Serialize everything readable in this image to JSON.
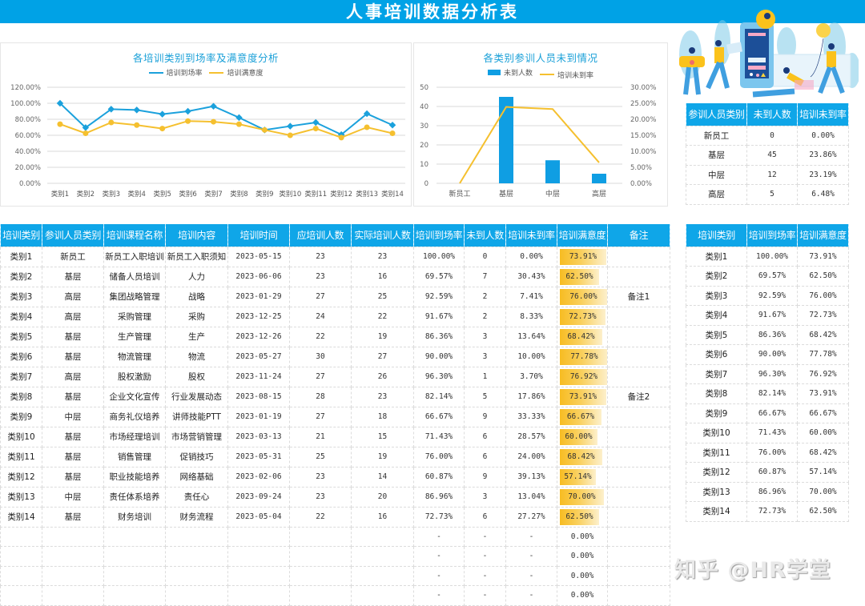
{
  "title": "人事培训数据分析表",
  "line_chart": {
    "title": "各培训类别到场率及满意度分析",
    "legend": [
      "培训到场率",
      "培训满意度"
    ],
    "y_ticks": [
      "120.00%",
      "100.00%",
      "80.00%",
      "60.00%",
      "40.00%",
      "20.00%",
      "0.00%"
    ],
    "colors": {
      "attendance": "#1ba1dc",
      "satisfaction": "#f5c02f"
    }
  },
  "bar_chart": {
    "title": "各类别参训人员未到情况",
    "legend": [
      "未到人数",
      "培训未到率"
    ],
    "y_left_ticks": [
      "50",
      "40",
      "30",
      "20",
      "10",
      "0"
    ],
    "y_right_ticks": [
      "30.00%",
      "25.00%",
      "20.00%",
      "15.00%",
      "10.00%",
      "5.00%",
      "0.00%"
    ],
    "colors": {
      "bar": "#0f9ee3",
      "line": "#f5c02f"
    }
  },
  "chart_data": [
    {
      "type": "line",
      "title": "各培训类别到场率及满意度分析",
      "categories": [
        "类别1",
        "类别2",
        "类别3",
        "类别4",
        "类别5",
        "类别6",
        "类别7",
        "类别8",
        "类别9",
        "类别10",
        "类别11",
        "类别12",
        "类别13",
        "类别14"
      ],
      "series": [
        {
          "name": "培训到场率",
          "values": [
            100.0,
            69.57,
            92.59,
            91.67,
            86.36,
            90.0,
            96.3,
            82.14,
            66.67,
            71.43,
            76.0,
            60.87,
            86.96,
            72.73
          ]
        },
        {
          "name": "培训满意度",
          "values": [
            73.91,
            62.5,
            76.0,
            72.73,
            68.42,
            77.78,
            76.92,
            73.91,
            66.67,
            60.0,
            68.42,
            57.14,
            70.0,
            62.5
          ]
        }
      ],
      "xlabel": "",
      "ylabel": "",
      "ylim": [
        0,
        120
      ],
      "y_unit": "%",
      "grid": true,
      "legend_position": "top"
    },
    {
      "type": "bar",
      "title": "各类别参训人员未到情况",
      "categories": [
        "新员工",
        "基层",
        "中层",
        "高层"
      ],
      "series": [
        {
          "name": "未到人数",
          "type": "bar",
          "axis": "left",
          "values": [
            0,
            45,
            12,
            5
          ]
        },
        {
          "name": "培训未到率",
          "type": "line",
          "axis": "right",
          "values": [
            0.0,
            23.86,
            23.19,
            6.48
          ]
        }
      ],
      "ylim_left": [
        0,
        50
      ],
      "ylim_right": [
        0,
        30
      ],
      "y_right_unit": "%",
      "grid": true,
      "legend_position": "top"
    }
  ],
  "summary_table": {
    "headers": [
      "参训人员类别",
      "未到人数",
      "培训未到率"
    ],
    "rows": [
      [
        "新员工",
        "0",
        "0.00%"
      ],
      [
        "基层",
        "45",
        "23.86%"
      ],
      [
        "中层",
        "12",
        "23.19%"
      ],
      [
        "高层",
        "5",
        "6.48%"
      ]
    ]
  },
  "main_table": {
    "headers": [
      "培训类别",
      "参训人员类别",
      "培训课程名称",
      "培训内容",
      "培训时间",
      "应培训人数",
      "实际培训人数",
      "培训到场率",
      "未到人数",
      "培训未到率",
      "培训满意度",
      "备注"
    ],
    "rows": [
      [
        "类别1",
        "新员工",
        "新员工入职培训",
        "新员工入职须知",
        "2023-05-15",
        "23",
        "23",
        "100.00%",
        "0",
        "0.00%",
        "73.91%",
        ""
      ],
      [
        "类别2",
        "基层",
        "储备人员培训",
        "人力",
        "2023-06-06",
        "23",
        "16",
        "69.57%",
        "7",
        "30.43%",
        "62.50%",
        ""
      ],
      [
        "类别3",
        "高层",
        "集团战略管理",
        "战略",
        "2023-01-29",
        "27",
        "25",
        "92.59%",
        "2",
        "7.41%",
        "76.00%",
        "备注1"
      ],
      [
        "类别4",
        "高层",
        "采购管理",
        "采购",
        "2023-12-25",
        "24",
        "22",
        "91.67%",
        "2",
        "8.33%",
        "72.73%",
        ""
      ],
      [
        "类别5",
        "基层",
        "生产管理",
        "生产",
        "2023-12-26",
        "22",
        "19",
        "86.36%",
        "3",
        "13.64%",
        "68.42%",
        ""
      ],
      [
        "类别6",
        "基层",
        "物流管理",
        "物流",
        "2023-05-27",
        "30",
        "27",
        "90.00%",
        "3",
        "10.00%",
        "77.78%",
        ""
      ],
      [
        "类别7",
        "高层",
        "股权激励",
        "股权",
        "2023-11-24",
        "27",
        "26",
        "96.30%",
        "1",
        "3.70%",
        "76.92%",
        ""
      ],
      [
        "类别8",
        "基层",
        "企业文化宣传",
        "行业发展动态",
        "2023-08-15",
        "28",
        "23",
        "82.14%",
        "5",
        "17.86%",
        "73.91%",
        "备注2"
      ],
      [
        "类别9",
        "中层",
        "商务礼仪培养",
        "讲师技能PTT",
        "2023-01-19",
        "27",
        "18",
        "66.67%",
        "9",
        "33.33%",
        "66.67%",
        ""
      ],
      [
        "类别10",
        "基层",
        "市场经理培训",
        "市场营销管理",
        "2023-03-13",
        "21",
        "15",
        "71.43%",
        "6",
        "28.57%",
        "60.00%",
        ""
      ],
      [
        "类别11",
        "基层",
        "销售管理",
        "促销技巧",
        "2023-05-31",
        "25",
        "19",
        "76.00%",
        "6",
        "24.00%",
        "68.42%",
        ""
      ],
      [
        "类别12",
        "基层",
        "职业技能培养",
        "网络基础",
        "2023-02-06",
        "23",
        "14",
        "60.87%",
        "9",
        "39.13%",
        "57.14%",
        ""
      ],
      [
        "类别13",
        "中层",
        "责任体系培养",
        "责任心",
        "2023-09-24",
        "23",
        "20",
        "86.96%",
        "3",
        "13.04%",
        "70.00%",
        ""
      ],
      [
        "类别14",
        "基层",
        "财务培训",
        "财务流程",
        "2023-05-04",
        "22",
        "16",
        "72.73%",
        "6",
        "27.27%",
        "62.50%",
        ""
      ],
      [
        "",
        "",
        "",
        "",
        "",
        "",
        "",
        "-",
        "-",
        "-",
        "0.00%",
        ""
      ],
      [
        "",
        "",
        "",
        "",
        "",
        "",
        "",
        "-",
        "-",
        "-",
        "0.00%",
        ""
      ],
      [
        "",
        "",
        "",
        "",
        "",
        "",
        "",
        "-",
        "-",
        "-",
        "0.00%",
        ""
      ],
      [
        "",
        "",
        "",
        "",
        "",
        "",
        "",
        "-",
        "-",
        "-",
        "0.00%",
        ""
      ]
    ]
  },
  "side_table": {
    "headers": [
      "培训类别",
      "培训到场率",
      "培训满意度"
    ],
    "rows": [
      [
        "类别1",
        "100.00%",
        "73.91%"
      ],
      [
        "类别2",
        "69.57%",
        "62.50%"
      ],
      [
        "类别3",
        "92.59%",
        "76.00%"
      ],
      [
        "类别4",
        "91.67%",
        "72.73%"
      ],
      [
        "类别5",
        "86.36%",
        "68.42%"
      ],
      [
        "类别6",
        "90.00%",
        "77.78%"
      ],
      [
        "类别7",
        "96.30%",
        "76.92%"
      ],
      [
        "类别8",
        "82.14%",
        "73.91%"
      ],
      [
        "类别9",
        "66.67%",
        "66.67%"
      ],
      [
        "类别10",
        "71.43%",
        "60.00%"
      ],
      [
        "类别11",
        "76.00%",
        "68.42%"
      ],
      [
        "类别12",
        "60.87%",
        "57.14%"
      ],
      [
        "类别13",
        "86.96%",
        "70.00%"
      ],
      [
        "类别14",
        "72.73%",
        "62.50%"
      ]
    ]
  },
  "watermark": "知乎 @HR学堂"
}
